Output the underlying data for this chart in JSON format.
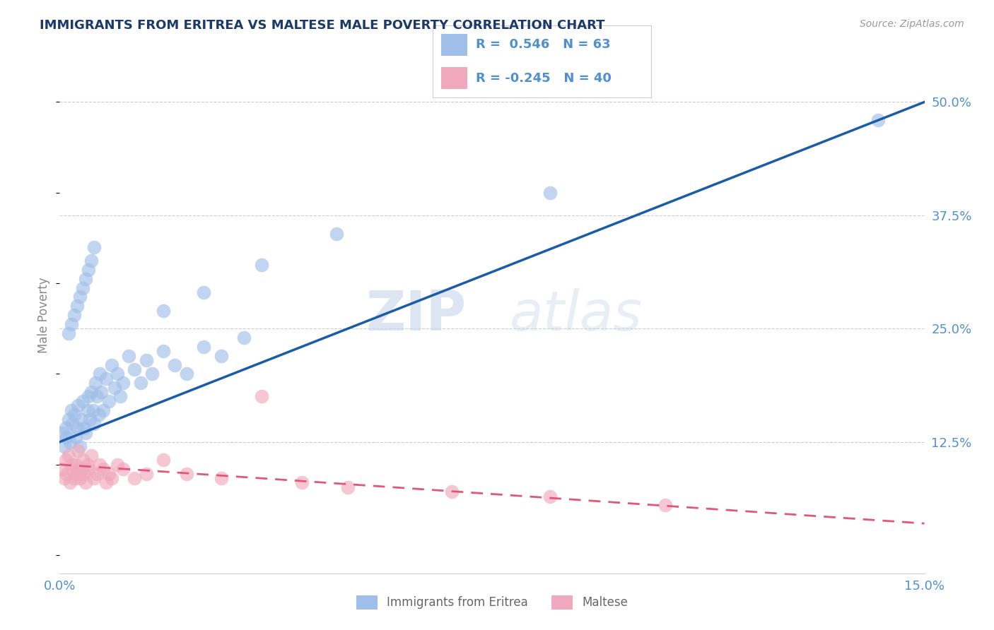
{
  "title": "IMMIGRANTS FROM ERITREA VS MALTESE MALE POVERTY CORRELATION CHART",
  "source": "Source: ZipAtlas.com",
  "ylabel": "Male Poverty",
  "xlim": [
    0.0,
    15.0
  ],
  "ylim": [
    -2.0,
    55.0
  ],
  "yticks_right": [
    12.5,
    25.0,
    37.5,
    50.0
  ],
  "ytick_labels_right": [
    "12.5%",
    "25.0%",
    "37.5%",
    "50.0%"
  ],
  "blue_color": "#a0bfe8",
  "pink_color": "#f0a8be",
  "blue_line_color": "#1a5ca8",
  "pink_line_color": "#e05878",
  "legend_blue_label": "Immigrants from Eritrea",
  "legend_pink_label": "Maltese",
  "r_blue": "0.546",
  "n_blue": "63",
  "r_pink": "-0.245",
  "n_pink": "40",
  "watermark_zip": "ZIP",
  "watermark_atlas": "atlas",
  "title_color": "#1a3a6b",
  "axis_label_color": "#5090d0",
  "source_color": "#999999",
  "blue_line_x0": 0.0,
  "blue_line_y0": 12.5,
  "blue_line_x1": 15.0,
  "blue_line_y1": 50.0,
  "pink_line_x0": 0.0,
  "pink_line_y0": 10.0,
  "pink_line_x1": 15.0,
  "pink_line_y1": 3.5,
  "blue_scatter_x": [
    0.05,
    0.08,
    0.1,
    0.12,
    0.15,
    0.18,
    0.2,
    0.22,
    0.25,
    0.28,
    0.3,
    0.32,
    0.35,
    0.38,
    0.4,
    0.42,
    0.45,
    0.48,
    0.5,
    0.52,
    0.55,
    0.58,
    0.6,
    0.62,
    0.65,
    0.68,
    0.7,
    0.72,
    0.75,
    0.8,
    0.85,
    0.9,
    0.95,
    1.0,
    1.05,
    1.1,
    1.2,
    1.3,
    1.4,
    1.5,
    1.6,
    1.8,
    2.0,
    2.2,
    2.5,
    2.8,
    3.2,
    0.15,
    0.2,
    0.25,
    0.3,
    0.35,
    0.4,
    0.45,
    0.5,
    0.55,
    0.6,
    1.8,
    2.5,
    3.5,
    4.8,
    8.5,
    14.2
  ],
  "blue_scatter_y": [
    13.5,
    12.0,
    14.0,
    13.0,
    15.0,
    12.5,
    16.0,
    14.5,
    15.5,
    13.0,
    14.0,
    16.5,
    12.0,
    15.0,
    17.0,
    14.0,
    13.5,
    16.0,
    17.5,
    15.0,
    18.0,
    16.0,
    14.5,
    19.0,
    17.5,
    15.5,
    20.0,
    18.0,
    16.0,
    19.5,
    17.0,
    21.0,
    18.5,
    20.0,
    17.5,
    19.0,
    22.0,
    20.5,
    19.0,
    21.5,
    20.0,
    22.5,
    21.0,
    20.0,
    23.0,
    22.0,
    24.0,
    24.5,
    25.5,
    26.5,
    27.5,
    28.5,
    29.5,
    30.5,
    31.5,
    32.5,
    34.0,
    27.0,
    29.0,
    32.0,
    35.5,
    40.0,
    48.0
  ],
  "pink_scatter_x": [
    0.05,
    0.08,
    0.1,
    0.12,
    0.15,
    0.18,
    0.2,
    0.22,
    0.25,
    0.28,
    0.3,
    0.32,
    0.35,
    0.38,
    0.4,
    0.42,
    0.45,
    0.48,
    0.5,
    0.55,
    0.6,
    0.65,
    0.7,
    0.75,
    0.8,
    0.85,
    0.9,
    1.0,
    1.1,
    1.3,
    1.5,
    1.8,
    2.2,
    2.8,
    3.5,
    4.2,
    5.0,
    6.8,
    8.5,
    10.5
  ],
  "pink_scatter_y": [
    9.5,
    8.5,
    10.5,
    9.0,
    11.0,
    8.0,
    10.0,
    9.5,
    8.5,
    10.0,
    9.0,
    11.5,
    8.5,
    9.5,
    10.5,
    9.0,
    8.0,
    10.0,
    9.5,
    11.0,
    8.5,
    9.0,
    10.0,
    9.5,
    8.0,
    9.0,
    8.5,
    10.0,
    9.5,
    8.5,
    9.0,
    10.5,
    9.0,
    8.5,
    17.5,
    8.0,
    7.5,
    7.0,
    6.5,
    5.5
  ]
}
